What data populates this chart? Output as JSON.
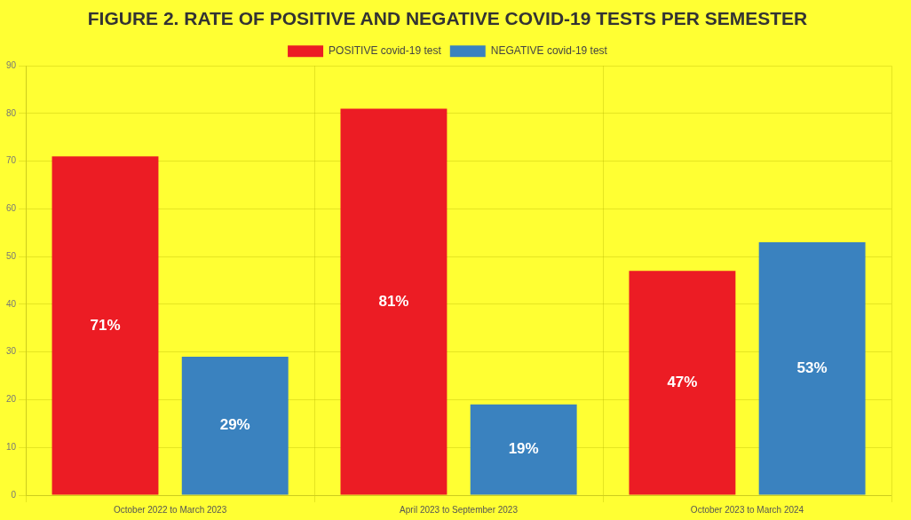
{
  "chart_data": {
    "type": "bar",
    "title": "FIGURE 2. RATE OF POSITIVE AND NEGATIVE COVID-19 TESTS PER SEMESTER",
    "categories": [
      "October 2022 to March 2023",
      "April 2023 to September 2023",
      "October 2023 to March 2024"
    ],
    "series": [
      {
        "name": "POSITIVE covid-19 test",
        "color": "#ec1c24",
        "values": [
          71,
          81,
          47
        ],
        "value_labels": [
          "71%",
          "81%",
          "47%"
        ]
      },
      {
        "name": "NEGATIVE covid-19 test",
        "color": "#3a82bf",
        "values": [
          29,
          19,
          53
        ],
        "value_labels": [
          "29%",
          "19%",
          "53%"
        ]
      }
    ],
    "ylim": [
      0,
      90
    ],
    "yticks": [
      0,
      10,
      20,
      30,
      40,
      50,
      60,
      70,
      80,
      90
    ],
    "grid": true,
    "legend": "top"
  }
}
